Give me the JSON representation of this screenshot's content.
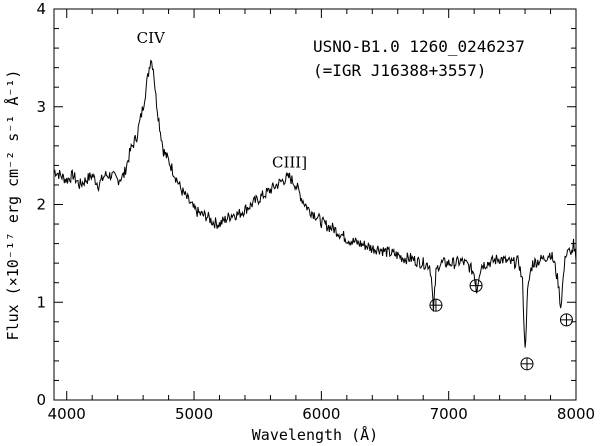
{
  "chart_data": {
    "type": "line",
    "title": "",
    "xlabel": "Wavelength (Å)",
    "ylabel": "Flux (×10⁻¹⁷ erg cm⁻² s⁻¹ Å⁻¹)",
    "xlim": [
      3900,
      8000
    ],
    "ylim": [
      0,
      4
    ],
    "xticks": [
      4000,
      5000,
      6000,
      7000,
      8000
    ],
    "yticks": [
      0,
      1,
      2,
      3,
      4
    ],
    "grid": false,
    "series": [
      {
        "x": [
          3900,
          3950,
          4000,
          4050,
          4100,
          4150,
          4200,
          4250,
          4300,
          4350,
          4400,
          4450,
          4500,
          4550,
          4600,
          4630,
          4660,
          4680,
          4700,
          4730,
          4760,
          4800,
          4850,
          4900,
          4950,
          5000,
          5050,
          5100,
          5150,
          5200,
          5250,
          5300,
          5350,
          5400,
          5450,
          5500,
          5550,
          5600,
          5650,
          5700,
          5750,
          5800,
          5850,
          5900,
          5950,
          6000,
          6050,
          6100,
          6150,
          6200,
          6250,
          6300,
          6350,
          6400,
          6450,
          6500,
          6550,
          6600,
          6650,
          6700,
          6750,
          6800,
          6850,
          6870,
          6880,
          6890,
          6900,
          6920,
          6950,
          7000,
          7050,
          7100,
          7150,
          7200,
          7220,
          7240,
          7260,
          7300,
          7350,
          7400,
          7450,
          7500,
          7550,
          7580,
          7600,
          7610,
          7620,
          7640,
          7660,
          7700,
          7750,
          7800,
          7830,
          7860,
          7880,
          7900,
          7920,
          7940,
          7960,
          7980,
          8000
        ],
        "y": [
          2.35,
          2.3,
          2.25,
          2.3,
          2.2,
          2.25,
          2.3,
          2.2,
          2.3,
          2.3,
          2.25,
          2.3,
          2.55,
          2.7,
          3.0,
          3.25,
          3.5,
          3.4,
          3.1,
          2.8,
          2.55,
          2.45,
          2.3,
          2.15,
          2.05,
          1.95,
          1.9,
          1.88,
          1.82,
          1.8,
          1.85,
          1.9,
          1.9,
          1.95,
          2.0,
          2.05,
          2.1,
          2.15,
          2.2,
          2.25,
          2.28,
          2.2,
          2.05,
          1.95,
          1.9,
          1.82,
          1.78,
          1.75,
          1.7,
          1.65,
          1.62,
          1.6,
          1.58,
          1.55,
          1.55,
          1.52,
          1.5,
          1.48,
          1.45,
          1.45,
          1.42,
          1.4,
          1.38,
          1.2,
          0.88,
          1.1,
          1.3,
          1.38,
          1.4,
          1.4,
          1.4,
          1.42,
          1.38,
          1.3,
          1.12,
          1.3,
          1.38,
          1.4,
          1.42,
          1.45,
          1.42,
          1.4,
          1.42,
          1.2,
          0.5,
          0.8,
          1.1,
          1.3,
          1.4,
          1.42,
          1.45,
          1.5,
          1.4,
          1.2,
          0.95,
          1.25,
          1.5,
          1.55,
          1.45,
          1.62,
          1.42
        ]
      }
    ],
    "annotations": [
      {
        "text": "CIV",
        "x": 4660,
        "y": 3.65
      },
      {
        "text": "CIII]",
        "x": 5750,
        "y": 2.38
      }
    ],
    "target_label": {
      "line1": "USNO-B1.0 1260_0246237",
      "line2": "(=IGR J16388+3557)"
    },
    "telluric_markers": [
      {
        "x": 6900,
        "y": 0.97
      },
      {
        "x": 7215,
        "y": 1.17
      },
      {
        "x": 7615,
        "y": 0.37
      },
      {
        "x": 7925,
        "y": 0.82
      }
    ]
  }
}
